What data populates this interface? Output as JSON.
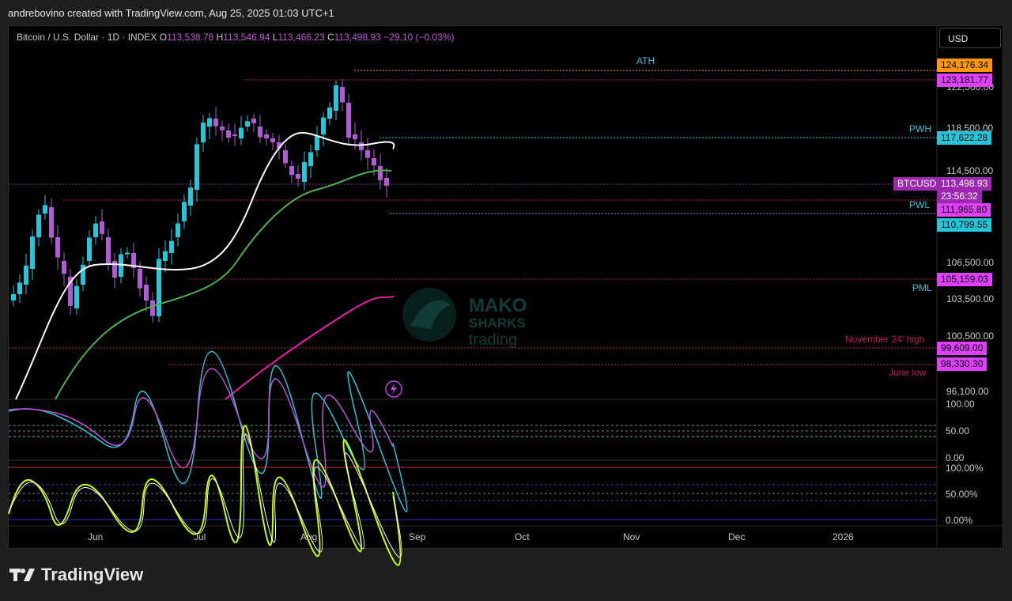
{
  "header": {
    "attribution": "andrebovino created with TradingView.com, Aug 25, 2025 01:03 UTC+1"
  },
  "legend": {
    "symbol": "Bitcoin / U.S. Dollar · 1D · INDEX",
    "o_label": "O",
    "o": "113,538.78",
    "h_label": "H",
    "h": "113,546.94",
    "l_label": "L",
    "l": "113,466.23",
    "c_label": "C",
    "c": "113,498.93",
    "change": "−29.10 (−0.03%)"
  },
  "currency_button": "USD",
  "price_axis": {
    "ticks": [
      "122,500.00",
      "118,500.00",
      "114,500.00",
      "106,500.00",
      "103,500.00",
      "100,500.00",
      "96,100.00"
    ]
  },
  "price_tags": [
    {
      "text": "124,176.34",
      "color": "#ff9800"
    },
    {
      "text": "123,181.77",
      "color": "#e040fb"
    },
    {
      "text": "117,622.28",
      "color": "#26c6da"
    },
    {
      "text": "113,498.93",
      "color": "#9c27b0"
    },
    {
      "text": "23:56:32",
      "color": "#9c27b0"
    },
    {
      "text": "111,965.80",
      "color": "#e040fb"
    },
    {
      "text": "110,799.55",
      "color": "#26c6da"
    },
    {
      "text": "105,159.03",
      "color": "#e040fb"
    },
    {
      "text": "99,609.00",
      "color": "#e040fb"
    },
    {
      "text": "98,330.30",
      "color": "#e040fb"
    }
  ],
  "symbol_tag": "BTCUSD",
  "level_labels": {
    "ath": "ATH",
    "pwh": "PWH",
    "pwl": "PWL",
    "pml": "PML",
    "nov_high": "November 24' high",
    "june_low": "June low"
  },
  "osc1_axis": [
    "100.00",
    "50.00",
    "0.00"
  ],
  "osc2_axis": [
    "100.00%",
    "50.00%",
    "0.00%"
  ],
  "x_axis": [
    "Jun",
    "Jul",
    "Aug",
    "Sep",
    "Oct",
    "Nov",
    "Dec",
    "2026"
  ],
  "watermark": {
    "line1": "MAKO",
    "line2": "SHARKS",
    "line3": "trading"
  },
  "footer": {
    "brand": "TradingView"
  },
  "colors": {
    "bg": "#000000",
    "up": "#26c6da",
    "down": "#b05bd6",
    "ma_fast": "#ffffff",
    "ma_mid": "#4caf50",
    "ma_slow": "#e91ea8"
  }
}
